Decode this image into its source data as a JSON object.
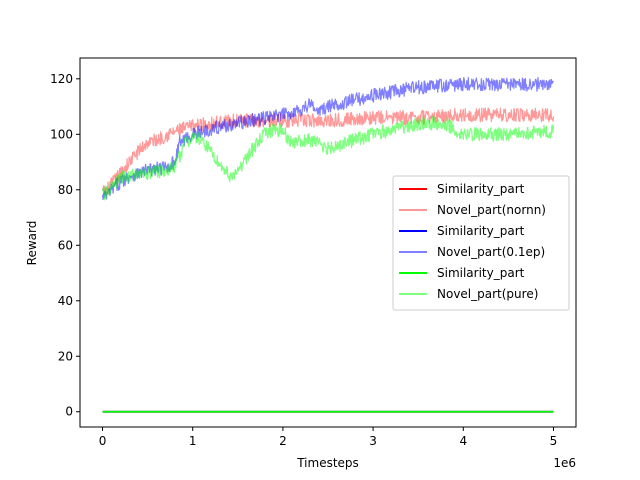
{
  "chart_data": {
    "type": "line",
    "xlabel": "Timesteps",
    "ylabel": "Reward",
    "x_offset_label": "1e6",
    "xlim": [
      -0.25,
      5.25
    ],
    "ylim": [
      -5.5,
      127.5
    ],
    "x_ticks": [
      0,
      1,
      2,
      3,
      4,
      5
    ],
    "x_tick_labels": [
      "0",
      "1",
      "2",
      "3",
      "4",
      "5"
    ],
    "y_ticks": [
      0,
      20,
      40,
      60,
      80,
      100,
      120
    ],
    "y_tick_labels": [
      "0",
      "20",
      "40",
      "60",
      "80",
      "100",
      "120"
    ],
    "grid": false,
    "legend_position": "center-right",
    "series": [
      {
        "name": "Similarity_part",
        "color": "#ff0000",
        "alpha": 1.0,
        "noise": 0.0,
        "x": [
          0,
          5
        ],
        "y": [
          0,
          0
        ]
      },
      {
        "name": "Novel_part(nornn)",
        "color": "#ff0000",
        "alpha": 0.4,
        "noise": 2.5,
        "x": [
          0,
          0.05,
          0.1,
          0.2,
          0.3,
          0.4,
          0.5,
          0.6,
          0.8,
          1.0,
          1.2,
          1.5,
          2.0,
          2.5,
          3.0,
          3.5,
          4.0,
          4.5,
          5.0
        ],
        "y": [
          79,
          80,
          82,
          86,
          90,
          94,
          97,
          98,
          101,
          103,
          104,
          105,
          105,
          105,
          106,
          106,
          107,
          107,
          107
        ]
      },
      {
        "name": "Similarity_part",
        "color": "#0000ff",
        "alpha": 1.0,
        "noise": 0.0,
        "x": [
          0,
          5
        ],
        "y": [
          0,
          0
        ]
      },
      {
        "name": "Novel_part(0.1ep)",
        "color": "#0000ff",
        "alpha": 0.5,
        "noise": 2.5,
        "x": [
          0,
          0.05,
          0.1,
          0.2,
          0.3,
          0.5,
          0.7,
          0.8,
          0.85,
          1.0,
          1.2,
          1.5,
          2.0,
          2.2,
          2.3,
          2.4,
          2.5,
          3.0,
          3.5,
          4.0,
          4.5,
          5.0
        ],
        "y": [
          77,
          78,
          80,
          83,
          85,
          87,
          88,
          90,
          97,
          100,
          102,
          104,
          107,
          109,
          111,
          108,
          110,
          114,
          117,
          118,
          118,
          118
        ]
      },
      {
        "name": "Similarity_part",
        "color": "#00ff00",
        "alpha": 1.0,
        "noise": 0.0,
        "x": [
          0,
          5
        ],
        "y": [
          0,
          0
        ]
      },
      {
        "name": "Novel_part(pure)",
        "color": "#00ff00",
        "alpha": 0.5,
        "noise": 2.5,
        "x": [
          0,
          0.05,
          0.1,
          0.2,
          0.3,
          0.5,
          0.7,
          0.8,
          0.9,
          1.0,
          1.1,
          1.2,
          1.3,
          1.45,
          1.6,
          1.8,
          1.9,
          2.0,
          2.1,
          2.3,
          2.5,
          3.0,
          3.5,
          3.8,
          4.0,
          4.5,
          5.0
        ],
        "y": [
          78,
          79,
          81,
          84,
          85,
          86,
          87,
          88,
          96,
          99,
          98,
          94,
          89,
          84,
          92,
          100,
          102,
          101,
          97,
          98,
          95,
          100,
          104,
          104,
          100,
          100,
          101
        ]
      }
    ]
  }
}
